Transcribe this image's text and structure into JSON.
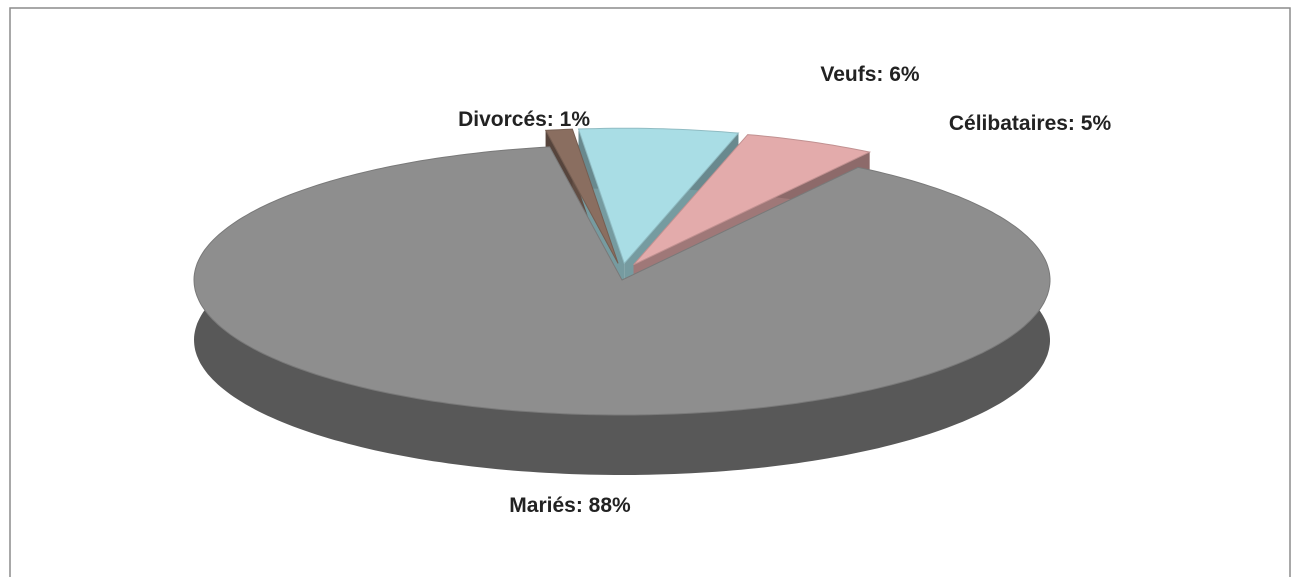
{
  "chart_data": {
    "type": "pie",
    "three_d": true,
    "categories": [
      "Mariés",
      "Divorcés",
      "Veufs",
      "Célibataires"
    ],
    "values": [
      88,
      1,
      6,
      5
    ],
    "value_labels": [
      "Mariés: 88%",
      "Divorcés: 1%",
      "Veufs: 6%",
      "Célibataires: 5%"
    ],
    "colors": [
      "#8e8e8e",
      "#8a6e60",
      "#a9dde5",
      "#e3abab"
    ]
  }
}
